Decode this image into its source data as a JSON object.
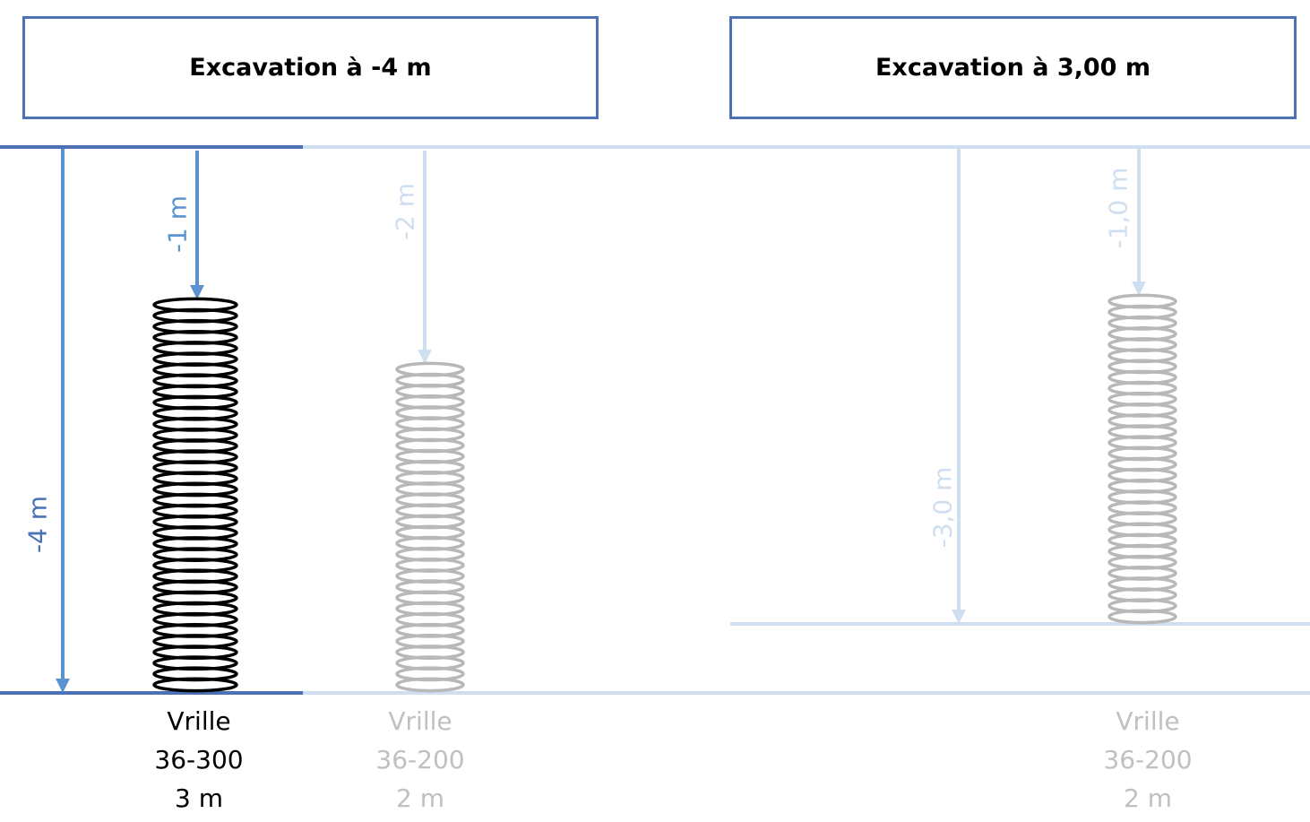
{
  "titles": {
    "left": "Excavation à -4 m",
    "right": "Excavation à 3,00 m"
  },
  "labels": {
    "total_depth_left": "-4 m",
    "offset_auger1": "-1 m",
    "offset_auger2": "-2 m",
    "total_depth_right": "-3,0 m",
    "offset_auger3": "-1,0 m"
  },
  "augers": [
    {
      "line1": "Vrille",
      "line2": "36-300",
      "line3": "3 m",
      "color": "#000000"
    },
    {
      "line1": "Vrille",
      "line2": "36-200",
      "line3": "2 m",
      "color": "#c0c0c0"
    },
    {
      "line1": "Vrille",
      "line2": "36-200",
      "line3": "2 m",
      "color": "#c0c0c0"
    }
  ],
  "colors": {
    "box_border": "#4a72b5",
    "dark_blue": "#4a72b5",
    "mid_blue": "#5b93d0",
    "light_blue": "#cfdff0",
    "auger_dark": "#000000",
    "auger_light": "#b8b8b8"
  }
}
